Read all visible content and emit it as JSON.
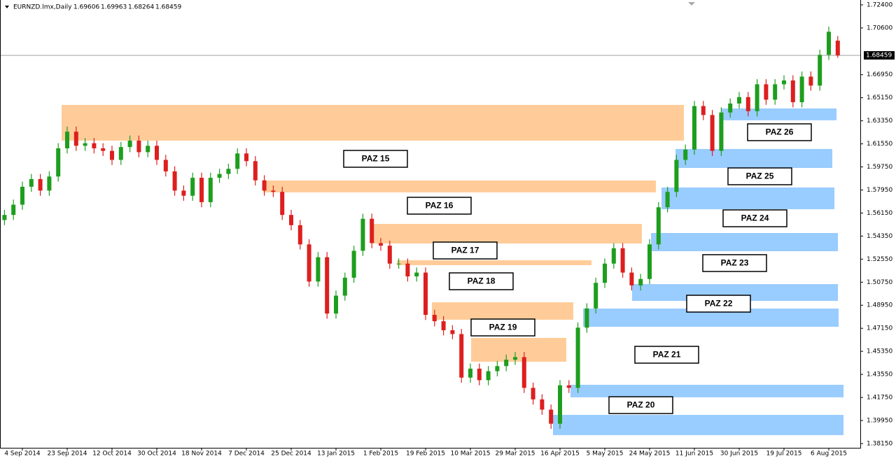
{
  "chart_data": {
    "type": "candlestick",
    "symbol": "EURNZD.lmx,Daily",
    "up_color": "#1e9e1e",
    "down_color": "#dd1f1f",
    "ylim": [
      1.3782,
      1.7278
    ],
    "yticks": [
      {
        "value": 1.724,
        "label": "1.72400"
      },
      {
        "value": 1.706,
        "label": "1.70600"
      },
      {
        "value": 1.6695,
        "label": "1.66950"
      },
      {
        "value": 1.6515,
        "label": "1.65150"
      },
      {
        "value": 1.6335,
        "label": "1.63350"
      },
      {
        "value": 1.6155,
        "label": "1.61550"
      },
      {
        "value": 1.5975,
        "label": "1.59750"
      },
      {
        "value": 1.5795,
        "label": "1.57950"
      },
      {
        "value": 1.5615,
        "label": "1.56150"
      },
      {
        "value": 1.5435,
        "label": "1.54350"
      },
      {
        "value": 1.5255,
        "label": "1.52550"
      },
      {
        "value": 1.5075,
        "label": "1.50750"
      },
      {
        "value": 1.4895,
        "label": "1.48950"
      },
      {
        "value": 1.4715,
        "label": "1.47150"
      },
      {
        "value": 1.4535,
        "label": "1.45350"
      },
      {
        "value": 1.4355,
        "label": "1.43550"
      },
      {
        "value": 1.4175,
        "label": "1.41750"
      },
      {
        "value": 1.3995,
        "label": "1.39950"
      },
      {
        "value": 1.3815,
        "label": "1.38150"
      }
    ],
    "categories": [
      null,
      null,
      "4 Sep 2014",
      null,
      null,
      null,
      null,
      "23 Sep 2014",
      null,
      null,
      null,
      null,
      "12 Oct 2014",
      null,
      null,
      null,
      null,
      "30 Oct 2014",
      null,
      null,
      null,
      null,
      "18 Nov 2014",
      null,
      null,
      null,
      null,
      "7 Dec 2014",
      null,
      null,
      null,
      null,
      "25 Dec 2014",
      null,
      null,
      null,
      null,
      "13 Jan 2015",
      null,
      null,
      null,
      null,
      "1 Feb 2015",
      null,
      null,
      null,
      null,
      "19 Feb 2015",
      null,
      null,
      null,
      null,
      "10 Mar 2015",
      null,
      null,
      null,
      null,
      "29 Mar 2015",
      null,
      null,
      null,
      null,
      "16 Apr 2015",
      null,
      null,
      null,
      null,
      "5 May 2015",
      null,
      null,
      null,
      null,
      "24 May 2015",
      null,
      null,
      null,
      null,
      "11 Jun 2015",
      null,
      null,
      null,
      null,
      "30 Jun 2015",
      null,
      null,
      null,
      null,
      "19 Jul 2015",
      null,
      null,
      null,
      null,
      "6 Aug 2015",
      null
    ],
    "open": [
      1.556,
      1.56,
      1.568,
      1.582,
      1.588,
      1.579,
      1.59,
      1.612,
      1.625,
      1.614,
      1.616,
      1.612,
      1.61,
      1.603,
      1.613,
      1.618,
      1.609,
      1.614,
      1.603,
      1.594,
      1.579,
      1.575,
      1.589,
      1.57,
      1.589,
      1.592,
      1.596,
      1.608,
      1.602,
      1.587,
      1.579,
      1.578,
      1.56,
      1.552,
      1.537,
      1.508,
      1.527,
      1.483,
      1.497,
      1.511,
      1.532,
      1.557,
      1.538,
      1.536,
      1.522,
      1.522,
      1.512,
      1.515,
      1.482,
      1.477,
      1.47,
      1.467,
      1.433,
      1.44,
      1.431,
      1.438,
      1.442,
      1.447,
      1.449,
      1.425,
      1.416,
      1.408,
      1.397,
      1.427,
      1.425,
      1.472,
      1.487,
      1.507,
      1.522,
      1.534,
      1.515,
      1.505,
      1.51,
      1.537,
      1.566,
      1.578,
      1.603,
      1.611,
      1.645,
      1.638,
      1.61,
      1.64,
      1.647,
      1.652,
      1.641,
      1.662,
      1.65,
      1.662,
      1.665,
      1.648,
      1.668,
      1.661,
      1.685,
      1.69606
    ],
    "high": [
      1.564,
      1.572,
      1.586,
      1.592,
      1.592,
      1.594,
      1.616,
      1.629,
      1.629,
      1.62,
      1.62,
      1.616,
      1.614,
      1.617,
      1.622,
      1.622,
      1.618,
      1.618,
      1.607,
      1.598,
      1.583,
      1.593,
      1.593,
      1.593,
      1.596,
      1.6,
      1.612,
      1.612,
      1.606,
      1.591,
      1.583,
      1.582,
      1.564,
      1.556,
      1.541,
      1.531,
      1.531,
      1.501,
      1.515,
      1.536,
      1.561,
      1.561,
      1.542,
      1.54,
      1.526,
      1.526,
      1.519,
      1.519,
      1.486,
      1.481,
      1.474,
      1.471,
      1.444,
      1.444,
      1.442,
      1.446,
      1.451,
      1.453,
      1.453,
      1.429,
      1.42,
      1.412,
      1.431,
      1.431,
      1.476,
      1.491,
      1.511,
      1.526,
      1.538,
      1.538,
      1.519,
      1.514,
      1.541,
      1.57,
      1.582,
      1.607,
      1.615,
      1.649,
      1.649,
      1.642,
      1.644,
      1.651,
      1.656,
      1.656,
      1.666,
      1.666,
      1.666,
      1.669,
      1.669,
      1.672,
      1.672,
      1.689,
      1.707,
      1.69963
    ],
    "low": [
      1.552,
      1.556,
      1.564,
      1.578,
      1.575,
      1.575,
      1.586,
      1.608,
      1.61,
      1.61,
      1.608,
      1.606,
      1.599,
      1.599,
      1.609,
      1.605,
      1.605,
      1.599,
      1.59,
      1.575,
      1.571,
      1.571,
      1.566,
      1.566,
      1.585,
      1.588,
      1.592,
      1.598,
      1.583,
      1.575,
      1.574,
      1.556,
      1.548,
      1.533,
      1.504,
      1.504,
      1.479,
      1.479,
      1.493,
      1.507,
      1.528,
      1.534,
      1.532,
      1.518,
      1.518,
      1.508,
      1.508,
      1.478,
      1.473,
      1.466,
      1.463,
      1.429,
      1.429,
      1.427,
      1.427,
      1.434,
      1.438,
      1.443,
      1.421,
      1.412,
      1.404,
      1.393,
      1.393,
      1.421,
      1.421,
      1.468,
      1.483,
      1.503,
      1.518,
      1.511,
      1.501,
      1.501,
      1.506,
      1.533,
      1.562,
      1.574,
      1.599,
      1.607,
      1.634,
      1.606,
      1.606,
      1.636,
      1.643,
      1.637,
      1.637,
      1.646,
      1.646,
      1.658,
      1.644,
      1.644,
      1.657,
      1.657,
      1.681,
      1.68264
    ],
    "close": [
      1.56,
      1.568,
      1.582,
      1.588,
      1.579,
      1.59,
      1.612,
      1.625,
      1.614,
      1.616,
      1.612,
      1.61,
      1.603,
      1.613,
      1.618,
      1.609,
      1.614,
      1.603,
      1.594,
      1.579,
      1.575,
      1.589,
      1.57,
      1.589,
      1.592,
      1.596,
      1.608,
      1.602,
      1.587,
      1.579,
      1.578,
      1.56,
      1.552,
      1.537,
      1.508,
      1.527,
      1.483,
      1.497,
      1.511,
      1.532,
      1.557,
      1.538,
      1.536,
      1.522,
      1.522,
      1.512,
      1.515,
      1.482,
      1.477,
      1.47,
      1.467,
      1.433,
      1.44,
      1.431,
      1.438,
      1.442,
      1.447,
      1.449,
      1.425,
      1.416,
      1.408,
      1.397,
      1.427,
      1.425,
      1.472,
      1.487,
      1.507,
      1.522,
      1.534,
      1.515,
      1.505,
      1.51,
      1.537,
      1.566,
      1.578,
      1.603,
      1.611,
      1.645,
      1.638,
      1.61,
      1.64,
      1.647,
      1.652,
      1.641,
      1.662,
      1.65,
      1.662,
      1.665,
      1.648,
      1.668,
      1.661,
      1.685,
      1.703,
      1.68459
    ],
    "zones": [
      {
        "top": 1.6459,
        "bottom": 1.618,
        "color": "#ffcc99"
      },
      {
        "top": 1.5869,
        "bottom": 1.5776,
        "color": "#ffcc99"
      },
      {
        "top": 1.553,
        "bottom": 1.5377,
        "color": "#ffcc99"
      },
      {
        "top": 1.5246,
        "bottom": 1.5208,
        "color": "#ffcc99"
      },
      {
        "top": 1.4918,
        "bottom": 1.4782,
        "color": "#ffcc99"
      },
      {
        "top": 1.464,
        "bottom": 1.4454,
        "color": "#ffcc99"
      },
      {
        "top": 1.6431,
        "bottom": 1.6339,
        "color": "#99ccff"
      },
      {
        "top": 1.6115,
        "bottom": 1.5967,
        "color": "#99ccff"
      },
      {
        "top": 1.5814,
        "bottom": 1.5645,
        "color": "#99ccff"
      },
      {
        "top": 1.5459,
        "bottom": 1.5317,
        "color": "#99ccff"
      },
      {
        "top": 1.506,
        "bottom": 1.4929,
        "color": "#99ccff"
      },
      {
        "top": 1.4869,
        "bottom": 1.4727,
        "color": "#99ccff"
      },
      {
        "top": 1.4274,
        "bottom": 1.4176,
        "color": "#99ccff"
      },
      {
        "top": 1.4039,
        "bottom": 1.3881,
        "color": "#99ccff"
      }
    ],
    "annotations": [
      "PAZ 15",
      "PAZ 16",
      "PAZ 17",
      "PAZ 18",
      "PAZ 19",
      "PAZ 20",
      "PAZ 21",
      "PAZ 22",
      "PAZ 23",
      "PAZ 24",
      "PAZ 25",
      "PAZ 26"
    ]
  }
}
